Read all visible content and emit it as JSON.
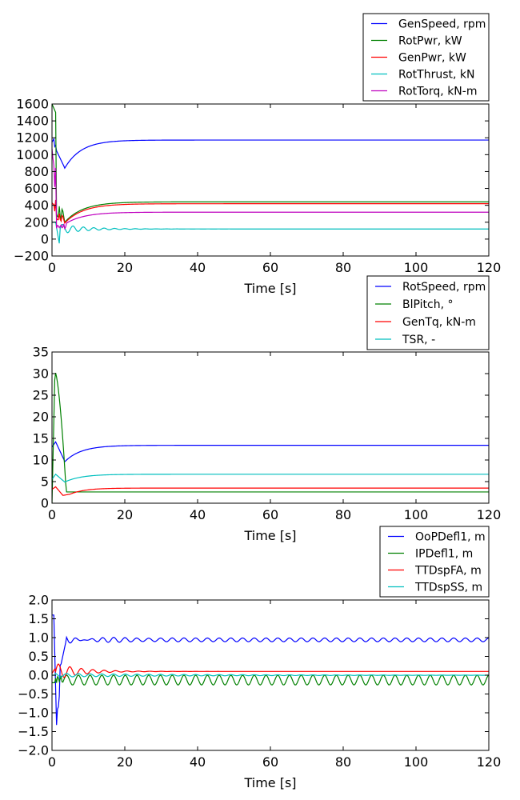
{
  "chart_data": [
    {
      "type": "line",
      "xlabel": "Time [s]",
      "ylabel": "",
      "xlim": [
        0,
        120
      ],
      "ylim": [
        -200,
        1600
      ],
      "xticks": [
        "0",
        "20",
        "40",
        "60",
        "80",
        "100",
        "120"
      ],
      "yticks": [
        "−200",
        "0",
        "200",
        "400",
        "600",
        "800",
        "1000",
        "1200",
        "1400",
        "1600"
      ],
      "grid": false,
      "legend_position": "above-right",
      "series": [
        {
          "name": "GenSpeed, rpm",
          "color": "#0000ff",
          "style": "genspeed",
          "final": 1173
        },
        {
          "name": "RotPwr, kW",
          "color": "#008000",
          "style": "rotpwr",
          "final": 441
        },
        {
          "name": "GenPwr, kW",
          "color": "#ff0000",
          "style": "genpwr",
          "final": 419
        },
        {
          "name": "RotThrust, kN",
          "color": "#00bfbf",
          "style": "rotthrust",
          "final": 120
        },
        {
          "name": "RotTorq, kN-m",
          "color": "#bf00bf",
          "style": "rottorq",
          "final": 319
        }
      ]
    },
    {
      "type": "line",
      "xlabel": "Time [s]",
      "ylabel": "",
      "xlim": [
        0,
        120
      ],
      "ylim": [
        0,
        35
      ],
      "xticks": [
        "0",
        "20",
        "40",
        "60",
        "80",
        "100",
        "120"
      ],
      "yticks": [
        "0",
        "5",
        "10",
        "15",
        "20",
        "25",
        "30",
        "35"
      ],
      "grid": false,
      "legend_position": "above-right",
      "series": [
        {
          "name": "RotSpeed, rpm",
          "color": "#0000ff",
          "style": "rotspeed",
          "final": 13.4
        },
        {
          "name": "BlPitch, °",
          "color": "#008000",
          "style": "blpitch",
          "final": 2.6
        },
        {
          "name": "GenTq, kN-m",
          "color": "#ff0000",
          "style": "gentq",
          "final": 3.5
        },
        {
          "name": "TSR, -",
          "color": "#00bfbf",
          "style": "tsr",
          "final": 6.7
        }
      ]
    },
    {
      "type": "line",
      "xlabel": "Time [s]",
      "ylabel": "",
      "xlim": [
        0,
        120
      ],
      "ylim": [
        -2.0,
        2.0
      ],
      "xticks": [
        "0",
        "20",
        "40",
        "60",
        "80",
        "100",
        "120"
      ],
      "yticks": [
        "−2.0",
        "−1.5",
        "−1.0",
        "−0.5",
        "0.0",
        "0.5",
        "1.0",
        "1.5",
        "2.0"
      ],
      "grid": false,
      "legend_position": "above-right",
      "series": [
        {
          "name": "OoPDefl1, m",
          "color": "#0000ff",
          "style": "oopdefl",
          "final": 0.94
        },
        {
          "name": "IPDefl1, m",
          "color": "#008000",
          "style": "ipdefl",
          "final": -0.13
        },
        {
          "name": "TTDspFA, m",
          "color": "#ff0000",
          "style": "ttdspfa",
          "final": 0.1
        },
        {
          "name": "TTDspSS, m",
          "color": "#00bfbf",
          "style": "ttdspss",
          "final": 0.0
        }
      ]
    }
  ]
}
